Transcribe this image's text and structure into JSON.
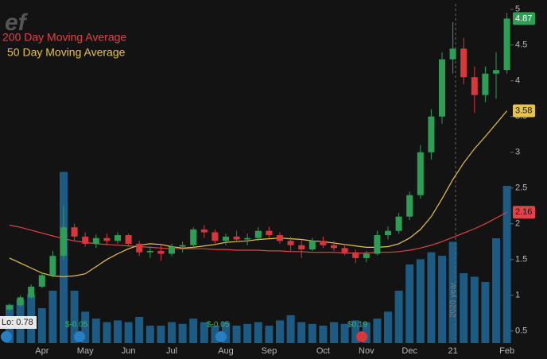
{
  "chart_data": {
    "type": "candlestick",
    "logo": "ef",
    "categories": [
      null,
      null,
      null,
      "Apr",
      null,
      null,
      null,
      "May",
      null,
      null,
      null,
      "Jun",
      null,
      null,
      null,
      "Jul",
      null,
      null,
      null,
      null,
      "Aug",
      null,
      null,
      null,
      "Sep",
      null,
      null,
      null,
      null,
      "Oct",
      null,
      null,
      null,
      "Nov",
      null,
      null,
      null,
      "Dec",
      null,
      null,
      null,
      "21",
      null,
      null,
      null,
      null,
      "Feb"
    ],
    "open": [
      0.8,
      0.86,
      0.97,
      1.12,
      1.28,
      1.55,
      1.95,
      1.82,
      1.72,
      1.8,
      1.76,
      1.84,
      1.72,
      1.6,
      1.62,
      1.58,
      1.68,
      1.7,
      1.92,
      1.88,
      1.76,
      1.82,
      1.78,
      1.8,
      1.9,
      1.84,
      1.76,
      1.7,
      1.64,
      1.76,
      1.7,
      1.66,
      1.6,
      1.52,
      1.58,
      1.84,
      1.9,
      2.1,
      2.4,
      3.0,
      3.5,
      4.3,
      4.45,
      4.05,
      3.8,
      4.1,
      4.15
    ],
    "high": [
      0.88,
      1.0,
      1.15,
      1.32,
      1.62,
      2.25,
      2.0,
      1.88,
      1.85,
      1.86,
      1.88,
      1.86,
      1.76,
      1.68,
      1.7,
      1.72,
      1.75,
      1.95,
      1.98,
      1.92,
      1.86,
      1.9,
      1.86,
      1.95,
      1.96,
      1.88,
      1.82,
      1.78,
      1.8,
      1.82,
      1.76,
      1.72,
      1.64,
      1.62,
      1.9,
      1.96,
      2.15,
      2.45,
      3.1,
      3.6,
      4.4,
      4.82,
      4.6,
      4.2,
      4.2,
      4.4,
      4.95
    ],
    "low": [
      0.78,
      0.84,
      0.95,
      1.1,
      1.25,
      1.5,
      1.75,
      1.68,
      1.66,
      1.7,
      1.72,
      1.68,
      1.55,
      1.52,
      1.48,
      1.55,
      1.6,
      1.66,
      1.8,
      1.72,
      1.7,
      1.74,
      1.7,
      1.76,
      1.8,
      1.72,
      1.62,
      1.52,
      1.62,
      1.66,
      1.62,
      1.56,
      1.45,
      1.46,
      1.56,
      1.78,
      1.86,
      2.05,
      2.35,
      2.9,
      3.4,
      4.1,
      3.95,
      3.55,
      3.7,
      3.75,
      4.1
    ],
    "close": [
      0.86,
      0.97,
      1.12,
      1.28,
      1.55,
      1.95,
      1.82,
      1.72,
      1.8,
      1.76,
      1.84,
      1.72,
      1.6,
      1.62,
      1.58,
      1.68,
      1.7,
      1.92,
      1.88,
      1.76,
      1.82,
      1.78,
      1.8,
      1.9,
      1.84,
      1.76,
      1.7,
      1.64,
      1.76,
      1.7,
      1.66,
      1.6,
      1.52,
      1.58,
      1.84,
      1.9,
      2.1,
      2.4,
      3.0,
      3.5,
      4.3,
      4.45,
      4.05,
      3.8,
      4.1,
      4.15,
      4.87
    ],
    "up_color": "#2f9e55",
    "down_color": "#d8383c",
    "overlays": [
      {
        "name": "200 Day Moving Average",
        "color": "#e04448",
        "values": [
          1.98,
          1.95,
          1.91,
          1.87,
          1.83,
          1.79,
          1.76,
          1.74,
          1.72,
          1.71,
          1.7,
          1.69,
          1.68,
          1.67,
          1.66,
          1.65,
          1.65,
          1.65,
          1.65,
          1.64,
          1.64,
          1.63,
          1.63,
          1.63,
          1.62,
          1.62,
          1.61,
          1.61,
          1.6,
          1.6,
          1.6,
          1.59,
          1.59,
          1.59,
          1.6,
          1.6,
          1.61,
          1.63,
          1.66,
          1.7,
          1.75,
          1.81,
          1.87,
          1.93,
          2.0,
          2.08,
          2.16
        ]
      },
      {
        "name": "50 Day Moving Average",
        "color": "#e8c34a",
        "values": [
          1.52,
          1.45,
          1.38,
          1.31,
          1.27,
          1.26,
          1.27,
          1.3,
          1.4,
          1.5,
          1.58,
          1.65,
          1.7,
          1.72,
          1.71,
          1.68,
          1.66,
          1.67,
          1.69,
          1.71,
          1.74,
          1.75,
          1.76,
          1.78,
          1.79,
          1.8,
          1.79,
          1.78,
          1.76,
          1.75,
          1.73,
          1.71,
          1.69,
          1.67,
          1.67,
          1.68,
          1.72,
          1.8,
          1.92,
          2.1,
          2.35,
          2.62,
          2.85,
          3.05,
          3.22,
          3.4,
          3.58
        ]
      }
    ],
    "volume": {
      "axis": "y2",
      "color": "#1f6a99",
      "values": [
        22,
        25,
        28,
        20,
        30,
        98,
        30,
        18,
        14,
        12,
        13,
        12,
        15,
        10,
        10,
        12,
        11,
        14,
        12,
        10,
        12,
        10,
        11,
        12,
        10,
        13,
        16,
        12,
        11,
        10,
        12,
        11,
        13,
        12,
        14,
        18,
        30,
        45,
        48,
        52,
        50,
        58,
        40,
        38,
        35,
        60,
        90
      ]
    },
    "ylim": [
      0.33,
      5.13
    ],
    "yticks": [
      0.5,
      1,
      1.5,
      2,
      2.5,
      3,
      3.5,
      4,
      4.5,
      5
    ],
    "y2lim": [
      0,
      100
    ],
    "price_badges": [
      {
        "value": 4.87,
        "color": "#2f9e55"
      },
      {
        "value": 3.58,
        "color": "#e8c34a"
      },
      {
        "value": 2.16,
        "color": "#e04448"
      }
    ],
    "low_label": {
      "label": "Lo:",
      "value": 0.78
    },
    "events": [
      "$-0.05",
      "$-0.05",
      "$0.19"
    ],
    "annotation": "2020 year"
  }
}
